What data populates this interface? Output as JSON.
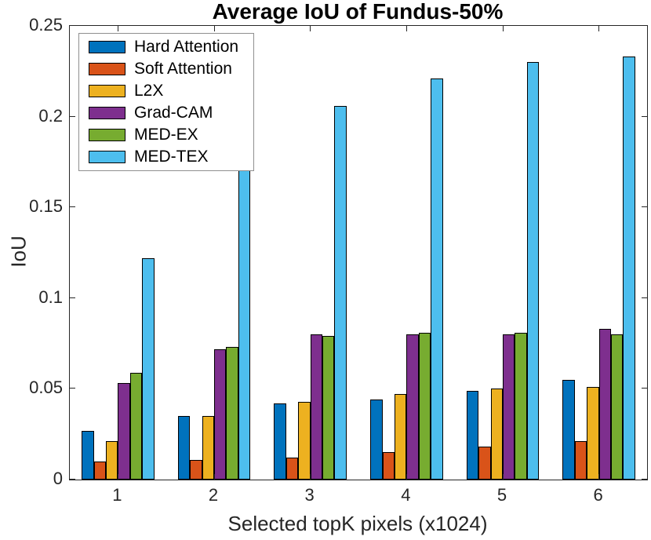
{
  "title": "Average IoU of Fundus-50%",
  "chart_data": {
    "type": "bar",
    "title": "Average IoU of Fundus-50%",
    "xlabel": "Selected topK pixels (x1024)",
    "ylabel": "IoU",
    "categories": [
      "1",
      "2",
      "3",
      "4",
      "5",
      "6"
    ],
    "ylim": [
      0,
      0.25
    ],
    "yticks": [
      0,
      0.05,
      0.1,
      0.15,
      0.2,
      0.25
    ],
    "ytick_labels": [
      "0",
      "0.05",
      "0.1",
      "0.15",
      "0.2",
      "0.25"
    ],
    "grid": false,
    "legend_position": "top-left",
    "axis_color": "#262626",
    "bar_edge_color": "#000000",
    "series": [
      {
        "name": "Hard Attention",
        "color": "#0072BD",
        "values": [
          0.027,
          0.035,
          0.042,
          0.044,
          0.049,
          0.055
        ]
      },
      {
        "name": "Soft Attention",
        "color": "#D95319",
        "values": [
          0.01,
          0.011,
          0.012,
          0.015,
          0.018,
          0.021
        ]
      },
      {
        "name": "L2X",
        "color": "#EDB120",
        "values": [
          0.021,
          0.035,
          0.043,
          0.047,
          0.05,
          0.051
        ]
      },
      {
        "name": "Grad-CAM",
        "color": "#7E2F8E",
        "values": [
          0.053,
          0.072,
          0.08,
          0.08,
          0.08,
          0.083
        ]
      },
      {
        "name": "MED-EX",
        "color": "#77AC30",
        "values": [
          0.059,
          0.073,
          0.079,
          0.081,
          0.081,
          0.08
        ]
      },
      {
        "name": "MED-TEX",
        "color": "#4DBEEE",
        "values": [
          0.122,
          0.18,
          0.206,
          0.221,
          0.23,
          0.233
        ]
      }
    ]
  }
}
